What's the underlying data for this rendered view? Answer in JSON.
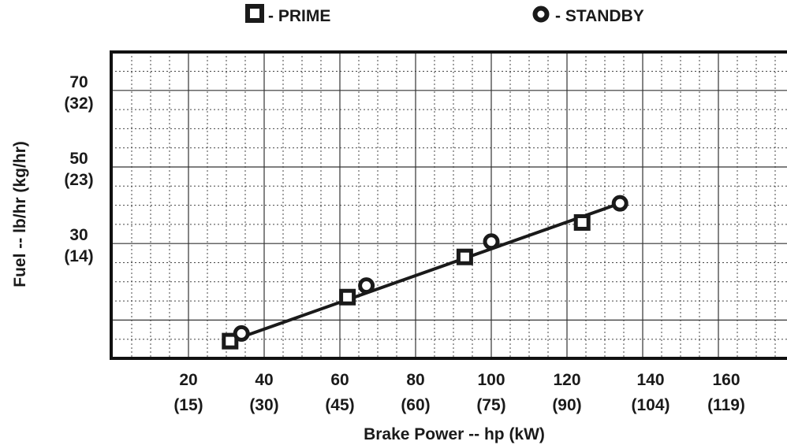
{
  "chart_data": {
    "type": "line",
    "xlabel": "Brake Power -- hp (kW)",
    "ylabel": "Fuel -- lb/hr (kg/hr)",
    "xlim": [
      0,
      180
    ],
    "ylim": [
      0,
      80
    ],
    "grid": true,
    "legend_position": "top",
    "x_ticks": [
      {
        "value": 20,
        "hp": "20",
        "kw": "(15)"
      },
      {
        "value": 40,
        "hp": "40",
        "kw": "(30)"
      },
      {
        "value": 60,
        "hp": "60",
        "kw": "(45)"
      },
      {
        "value": 80,
        "hp": "80",
        "kw": "(60)"
      },
      {
        "value": 100,
        "hp": "100",
        "kw": "(75)"
      },
      {
        "value": 120,
        "hp": "120",
        "kw": "(90)"
      },
      {
        "value": 140,
        "hp": "140",
        "kw": "(104)"
      },
      {
        "value": 160,
        "hp": "160",
        "kw": "(119)"
      }
    ],
    "y_ticks": [
      {
        "value": 30,
        "lb": "30",
        "kg": "(14)"
      },
      {
        "value": 50,
        "lb": "50",
        "kg": "(23)"
      },
      {
        "value": 70,
        "lb": "70",
        "kg": "(32)"
      }
    ],
    "series": [
      {
        "name": "PRIME",
        "marker": "square",
        "x": [
          31,
          62,
          93,
          124
        ],
        "y": [
          4.5,
          16,
          26.5,
          35.5
        ]
      },
      {
        "name": "STANDBY",
        "marker": "circle",
        "x": [
          34,
          67,
          100,
          134
        ],
        "y": [
          6.5,
          19,
          30.5,
          40.5
        ]
      }
    ],
    "legend": [
      {
        "symbol": "square",
        "text": "- PRIME"
      },
      {
        "symbol": "circle",
        "text": "- STANDBY"
      }
    ],
    "colors": {
      "line": "#1a1a1a",
      "grid": "#333333",
      "background": "#ffffff"
    }
  }
}
